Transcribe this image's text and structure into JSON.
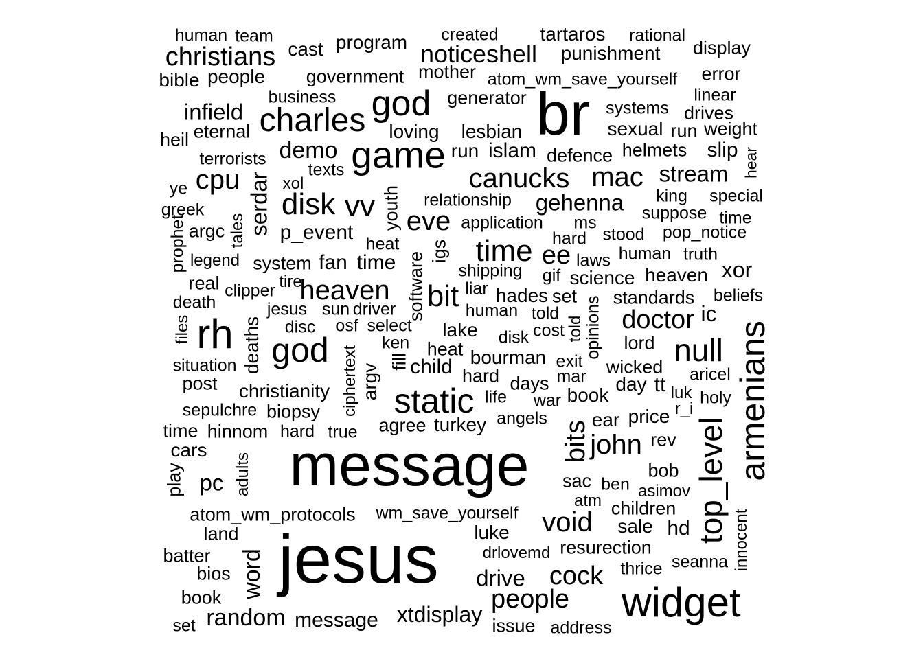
{
  "words": [
    "human",
    "team",
    "created",
    "tartaros",
    "rational",
    "cast",
    "program",
    "display",
    "christians",
    "noticeshell",
    "punishment",
    "mother",
    "error",
    "bible",
    "people",
    "government",
    "atom_wm_save_yourself",
    "business",
    "linear",
    "god",
    "generator",
    "br",
    "infield",
    "systems",
    "drives",
    "charles",
    "heil",
    "eternal",
    "loving",
    "lesbian",
    "sexual",
    "run",
    "weight",
    "terrorists",
    "demo",
    "game",
    "run",
    "islam",
    "defence",
    "helmets",
    "slip",
    "hear",
    "texts",
    "cpu",
    "serdar",
    "canucks",
    "mac",
    "stream",
    "ye",
    "xol",
    "greek",
    "disk",
    "vv",
    "youth",
    "relationship",
    "gehenna",
    "king",
    "special",
    "suppose",
    "argc",
    "tales",
    "p_event",
    "eve",
    "application",
    "ms",
    "time",
    "prophet",
    "heat",
    "igs",
    "time",
    "stood",
    "pop_notice",
    "hard",
    "legend",
    "system",
    "fan",
    "time",
    "software",
    "ee",
    "human",
    "truth",
    "laws",
    "shipping",
    "real",
    "tire",
    "gif",
    "science",
    "heaven",
    "xor",
    "clipper",
    "heaven",
    "liar",
    "bit",
    "hades",
    "set",
    "standards",
    "beliefs",
    "death",
    "rh",
    "jesus",
    "sun",
    "driver",
    "opinions",
    "human",
    "told",
    "files",
    "disc",
    "osf",
    "select",
    "doctor",
    "ic",
    "told",
    "armenians",
    "deaths",
    "cost",
    "lake",
    "disk",
    "lord",
    "ken",
    "god",
    "ciphertext",
    "fill",
    "heat",
    "null",
    "situation",
    "argv",
    "child",
    "bourman",
    "exit",
    "wicked",
    "hard",
    "mar",
    "aricel",
    "day",
    "tt",
    "post",
    "christianity",
    "days",
    "static",
    "luk",
    "life",
    "holy",
    "war",
    "book",
    "sepulchre",
    "biopsy",
    "price",
    "r_i",
    "turkey",
    "angels",
    "ear",
    "agree",
    "time",
    "hinnom",
    "hard",
    "true",
    "bits",
    "top_level",
    "rev",
    "john",
    "cars",
    "message",
    "play",
    "adults",
    "bob",
    "sac",
    "pc",
    "ben",
    "asimov",
    "atm",
    "children",
    "atom_wm_protocols",
    "wm_save_yourself",
    "void",
    "sale",
    "innocent",
    "hd",
    "land",
    "luke",
    "drlovemd",
    "resurection",
    "batter",
    "jesus",
    "seanna",
    "thrice",
    "bios",
    "word",
    "cock",
    "drive",
    "book",
    "people",
    "widget",
    "random",
    "xtdisplay",
    "set",
    "message",
    "address",
    "issue"
  ]
}
